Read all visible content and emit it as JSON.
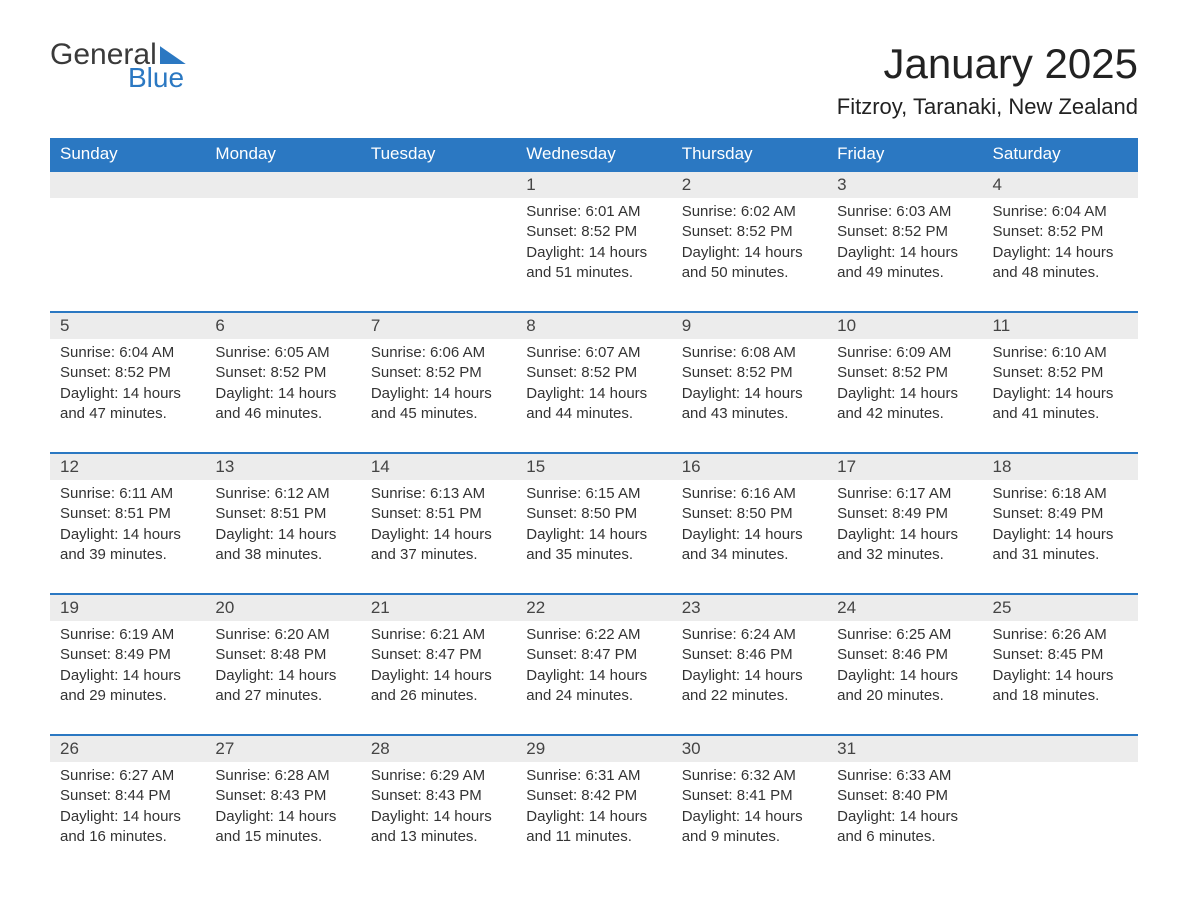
{
  "logo": {
    "text1": "General",
    "text2": "Blue"
  },
  "title": "January 2025",
  "subtitle": "Fitzroy, Taranaki, New Zealand",
  "colors": {
    "header_bg": "#2b78c2",
    "header_text": "#ffffff",
    "daynum_bg": "#ececec",
    "body_bg": "#ffffff",
    "text": "#333333",
    "rule": "#2b78c2"
  },
  "typography": {
    "title_fontsize": 42,
    "subtitle_fontsize": 22,
    "header_fontsize": 17,
    "daynum_fontsize": 17,
    "body_fontsize": 15,
    "font_family": "Arial"
  },
  "columns": [
    "Sunday",
    "Monday",
    "Tuesday",
    "Wednesday",
    "Thursday",
    "Friday",
    "Saturday"
  ],
  "weeks": [
    [
      null,
      null,
      null,
      {
        "n": "1",
        "sunrise": "Sunrise: 6:01 AM",
        "sunset": "Sunset: 8:52 PM",
        "d1": "Daylight: 14 hours",
        "d2": "and 51 minutes."
      },
      {
        "n": "2",
        "sunrise": "Sunrise: 6:02 AM",
        "sunset": "Sunset: 8:52 PM",
        "d1": "Daylight: 14 hours",
        "d2": "and 50 minutes."
      },
      {
        "n": "3",
        "sunrise": "Sunrise: 6:03 AM",
        "sunset": "Sunset: 8:52 PM",
        "d1": "Daylight: 14 hours",
        "d2": "and 49 minutes."
      },
      {
        "n": "4",
        "sunrise": "Sunrise: 6:04 AM",
        "sunset": "Sunset: 8:52 PM",
        "d1": "Daylight: 14 hours",
        "d2": "and 48 minutes."
      }
    ],
    [
      {
        "n": "5",
        "sunrise": "Sunrise: 6:04 AM",
        "sunset": "Sunset: 8:52 PM",
        "d1": "Daylight: 14 hours",
        "d2": "and 47 minutes."
      },
      {
        "n": "6",
        "sunrise": "Sunrise: 6:05 AM",
        "sunset": "Sunset: 8:52 PM",
        "d1": "Daylight: 14 hours",
        "d2": "and 46 minutes."
      },
      {
        "n": "7",
        "sunrise": "Sunrise: 6:06 AM",
        "sunset": "Sunset: 8:52 PM",
        "d1": "Daylight: 14 hours",
        "d2": "and 45 minutes."
      },
      {
        "n": "8",
        "sunrise": "Sunrise: 6:07 AM",
        "sunset": "Sunset: 8:52 PM",
        "d1": "Daylight: 14 hours",
        "d2": "and 44 minutes."
      },
      {
        "n": "9",
        "sunrise": "Sunrise: 6:08 AM",
        "sunset": "Sunset: 8:52 PM",
        "d1": "Daylight: 14 hours",
        "d2": "and 43 minutes."
      },
      {
        "n": "10",
        "sunrise": "Sunrise: 6:09 AM",
        "sunset": "Sunset: 8:52 PM",
        "d1": "Daylight: 14 hours",
        "d2": "and 42 minutes."
      },
      {
        "n": "11",
        "sunrise": "Sunrise: 6:10 AM",
        "sunset": "Sunset: 8:52 PM",
        "d1": "Daylight: 14 hours",
        "d2": "and 41 minutes."
      }
    ],
    [
      {
        "n": "12",
        "sunrise": "Sunrise: 6:11 AM",
        "sunset": "Sunset: 8:51 PM",
        "d1": "Daylight: 14 hours",
        "d2": "and 39 minutes."
      },
      {
        "n": "13",
        "sunrise": "Sunrise: 6:12 AM",
        "sunset": "Sunset: 8:51 PM",
        "d1": "Daylight: 14 hours",
        "d2": "and 38 minutes."
      },
      {
        "n": "14",
        "sunrise": "Sunrise: 6:13 AM",
        "sunset": "Sunset: 8:51 PM",
        "d1": "Daylight: 14 hours",
        "d2": "and 37 minutes."
      },
      {
        "n": "15",
        "sunrise": "Sunrise: 6:15 AM",
        "sunset": "Sunset: 8:50 PM",
        "d1": "Daylight: 14 hours",
        "d2": "and 35 minutes."
      },
      {
        "n": "16",
        "sunrise": "Sunrise: 6:16 AM",
        "sunset": "Sunset: 8:50 PM",
        "d1": "Daylight: 14 hours",
        "d2": "and 34 minutes."
      },
      {
        "n": "17",
        "sunrise": "Sunrise: 6:17 AM",
        "sunset": "Sunset: 8:49 PM",
        "d1": "Daylight: 14 hours",
        "d2": "and 32 minutes."
      },
      {
        "n": "18",
        "sunrise": "Sunrise: 6:18 AM",
        "sunset": "Sunset: 8:49 PM",
        "d1": "Daylight: 14 hours",
        "d2": "and 31 minutes."
      }
    ],
    [
      {
        "n": "19",
        "sunrise": "Sunrise: 6:19 AM",
        "sunset": "Sunset: 8:49 PM",
        "d1": "Daylight: 14 hours",
        "d2": "and 29 minutes."
      },
      {
        "n": "20",
        "sunrise": "Sunrise: 6:20 AM",
        "sunset": "Sunset: 8:48 PM",
        "d1": "Daylight: 14 hours",
        "d2": "and 27 minutes."
      },
      {
        "n": "21",
        "sunrise": "Sunrise: 6:21 AM",
        "sunset": "Sunset: 8:47 PM",
        "d1": "Daylight: 14 hours",
        "d2": "and 26 minutes."
      },
      {
        "n": "22",
        "sunrise": "Sunrise: 6:22 AM",
        "sunset": "Sunset: 8:47 PM",
        "d1": "Daylight: 14 hours",
        "d2": "and 24 minutes."
      },
      {
        "n": "23",
        "sunrise": "Sunrise: 6:24 AM",
        "sunset": "Sunset: 8:46 PM",
        "d1": "Daylight: 14 hours",
        "d2": "and 22 minutes."
      },
      {
        "n": "24",
        "sunrise": "Sunrise: 6:25 AM",
        "sunset": "Sunset: 8:46 PM",
        "d1": "Daylight: 14 hours",
        "d2": "and 20 minutes."
      },
      {
        "n": "25",
        "sunrise": "Sunrise: 6:26 AM",
        "sunset": "Sunset: 8:45 PM",
        "d1": "Daylight: 14 hours",
        "d2": "and 18 minutes."
      }
    ],
    [
      {
        "n": "26",
        "sunrise": "Sunrise: 6:27 AM",
        "sunset": "Sunset: 8:44 PM",
        "d1": "Daylight: 14 hours",
        "d2": "and 16 minutes."
      },
      {
        "n": "27",
        "sunrise": "Sunrise: 6:28 AM",
        "sunset": "Sunset: 8:43 PM",
        "d1": "Daylight: 14 hours",
        "d2": "and 15 minutes."
      },
      {
        "n": "28",
        "sunrise": "Sunrise: 6:29 AM",
        "sunset": "Sunset: 8:43 PM",
        "d1": "Daylight: 14 hours",
        "d2": "and 13 minutes."
      },
      {
        "n": "29",
        "sunrise": "Sunrise: 6:31 AM",
        "sunset": "Sunset: 8:42 PM",
        "d1": "Daylight: 14 hours",
        "d2": "and 11 minutes."
      },
      {
        "n": "30",
        "sunrise": "Sunrise: 6:32 AM",
        "sunset": "Sunset: 8:41 PM",
        "d1": "Daylight: 14 hours",
        "d2": "and 9 minutes."
      },
      {
        "n": "31",
        "sunrise": "Sunrise: 6:33 AM",
        "sunset": "Sunset: 8:40 PM",
        "d1": "Daylight: 14 hours",
        "d2": "and 6 minutes."
      },
      null
    ]
  ]
}
